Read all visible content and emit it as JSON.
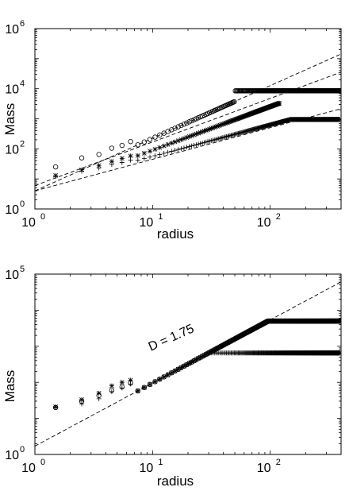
{
  "chart_data": [
    {
      "type": "scatter",
      "xscale": "log",
      "yscale": "log",
      "xlim": [
        1,
        400
      ],
      "ylim": [
        1,
        1000000
      ],
      "xlabel": "radius",
      "ylabel": "Mass",
      "grid": false,
      "x_ticks": [
        {
          "value": 1,
          "base": "10",
          "exp": "0"
        },
        {
          "value": 10,
          "base": "10",
          "exp": "1"
        },
        {
          "value": 100,
          "base": "10",
          "exp": "2"
        }
      ],
      "y_ticks": [
        {
          "value": 1,
          "base": "10",
          "exp": "0"
        },
        {
          "value": 100,
          "base": "10",
          "exp": "2"
        },
        {
          "value": 10000,
          "base": "10",
          "exp": "4"
        },
        {
          "value": 1000000,
          "base": "10",
          "exp": "6"
        }
      ],
      "series": [
        {
          "marker": "circle",
          "prefactor": 4.0,
          "slope": 1.75,
          "saturation_radius": 50,
          "saturation_mass": 8500,
          "first_points": [
            [
              1.5,
              25
            ],
            [
              2.5,
              50
            ],
            [
              3.5,
              65
            ],
            [
              4.5,
              105
            ],
            [
              5.5,
              130
            ],
            [
              6.5,
              175
            ]
          ]
        },
        {
          "marker": "star",
          "prefactor": 3.2,
          "slope": 1.45,
          "saturation_radius": 120,
          "saturation_mass": 8500,
          "first_points": [
            [
              1.5,
              13
            ],
            [
              2.5,
              20
            ],
            [
              3.5,
              28
            ],
            [
              4.5,
              38
            ],
            [
              5.5,
              48
            ],
            [
              6.5,
              58
            ]
          ]
        },
        {
          "marker": "plus",
          "prefactor": 5.0,
          "slope": 1.05,
          "saturation_radius": 150,
          "saturation_mass": 950,
          "first_points": [
            [
              1.5,
              12
            ],
            [
              2.5,
              18
            ],
            [
              3.5,
              23
            ],
            [
              4.5,
              30
            ],
            [
              5.5,
              35
            ],
            [
              6.5,
              42
            ]
          ]
        }
      ],
      "reference_lines": [
        {
          "prefactor": 4.0,
          "slope": 1.75
        },
        {
          "prefactor": 6.0,
          "slope": 1.45
        },
        {
          "prefactor": 4.0,
          "slope": 1.05
        }
      ]
    },
    {
      "type": "scatter",
      "xscale": "log",
      "yscale": "log",
      "xlim": [
        1,
        400
      ],
      "ylim": [
        1,
        100000
      ],
      "xlabel": "radius",
      "ylabel": "Mass",
      "grid": false,
      "annotation": "D = 1.75",
      "x_ticks": [
        {
          "value": 1,
          "base": "10",
          "exp": "0"
        },
        {
          "value": 10,
          "base": "10",
          "exp": "1"
        },
        {
          "value": 100,
          "base": "10",
          "exp": "2"
        }
      ],
      "y_ticks": [
        {
          "value": 1,
          "base": "10",
          "exp": "0"
        },
        {
          "value": 100000,
          "base": "10",
          "exp": "5"
        }
      ],
      "series": [
        {
          "marker": "circle",
          "prefactor": 1.7,
          "slope": 1.75,
          "saturation_radius": 110,
          "saturation_mass": 5000,
          "first_points": [
            [
              1.5,
              20
            ],
            [
              2.5,
              30
            ],
            [
              3.5,
              43
            ],
            [
              4.5,
              60
            ],
            [
              5.5,
              75
            ],
            [
              6.5,
              95
            ]
          ]
        },
        {
          "marker": "star",
          "prefactor": 1.7,
          "slope": 1.75,
          "saturation_radius": 110,
          "saturation_mass": 5000,
          "first_points": [
            [
              1.5,
              21
            ],
            [
              2.5,
              33
            ],
            [
              3.5,
              50
            ],
            [
              4.5,
              80
            ],
            [
              5.5,
              100
            ],
            [
              6.5,
              115
            ]
          ]
        },
        {
          "marker": "plus",
          "prefactor": 1.7,
          "slope": 1.75,
          "saturation_radius": 90,
          "saturation_mass": 650,
          "first_points": [
            [
              1.5,
              20
            ],
            [
              2.5,
              25
            ],
            [
              3.5,
              35
            ],
            [
              4.5,
              55
            ],
            [
              5.5,
              70
            ],
            [
              6.5,
              90
            ]
          ]
        }
      ],
      "reference_lines": [
        {
          "prefactor": 1.7,
          "slope": 1.75
        }
      ]
    }
  ]
}
